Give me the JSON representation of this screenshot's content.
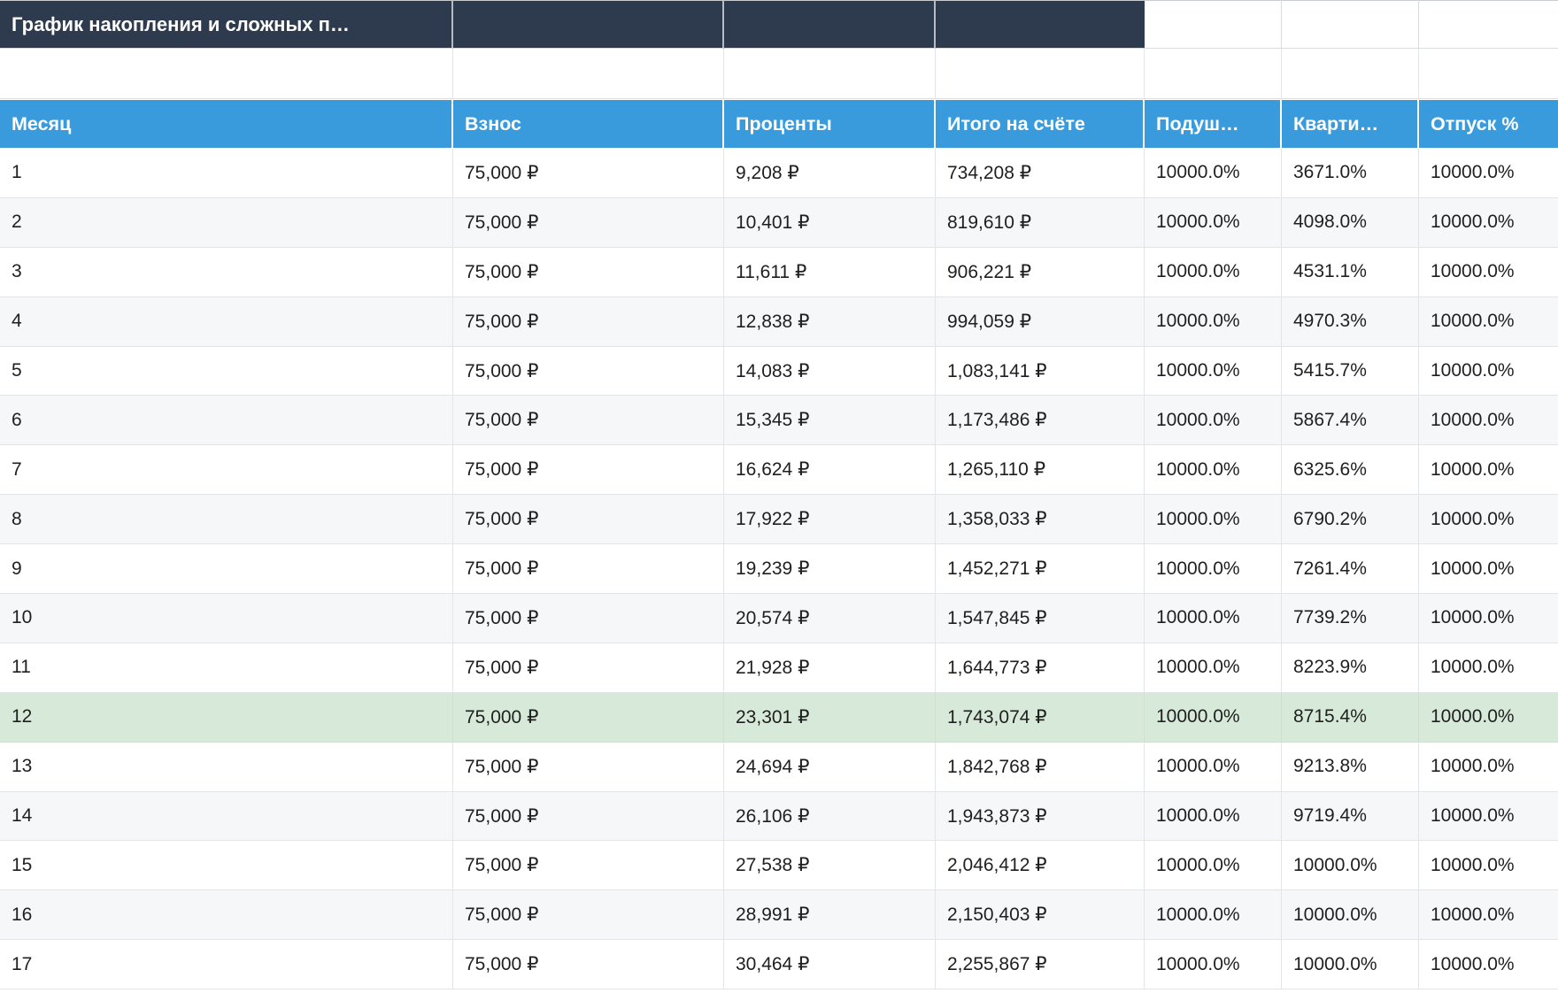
{
  "title": "График накопления и сложных п…",
  "columns": [
    {
      "key": "month",
      "label": "Месяц"
    },
    {
      "key": "contribution",
      "label": "Взнос"
    },
    {
      "key": "interest",
      "label": "Проценты"
    },
    {
      "key": "total",
      "label": "Итого на счёте"
    },
    {
      "key": "cushion-pct",
      "label": "Подуш…"
    },
    {
      "key": "apartment-pct",
      "label": "Кварти…"
    },
    {
      "key": "vacation-pct",
      "label": "Отпуск %"
    }
  ],
  "highlighted_month": "12",
  "rows": [
    {
      "highlight": false,
      "cells": [
        "1",
        "75,000 ₽",
        "9,208 ₽",
        "734,208 ₽",
        "10000.0%",
        "3671.0%",
        "10000.0%"
      ]
    },
    {
      "highlight": false,
      "cells": [
        "2",
        "75,000 ₽",
        "10,401 ₽",
        "819,610 ₽",
        "10000.0%",
        "4098.0%",
        "10000.0%"
      ]
    },
    {
      "highlight": false,
      "cells": [
        "3",
        "75,000 ₽",
        "11,611 ₽",
        "906,221 ₽",
        "10000.0%",
        "4531.1%",
        "10000.0%"
      ]
    },
    {
      "highlight": false,
      "cells": [
        "4",
        "75,000 ₽",
        "12,838 ₽",
        "994,059 ₽",
        "10000.0%",
        "4970.3%",
        "10000.0%"
      ]
    },
    {
      "highlight": false,
      "cells": [
        "5",
        "75,000 ₽",
        "14,083 ₽",
        "1,083,141 ₽",
        "10000.0%",
        "5415.7%",
        "10000.0%"
      ]
    },
    {
      "highlight": false,
      "cells": [
        "6",
        "75,000 ₽",
        "15,345 ₽",
        "1,173,486 ₽",
        "10000.0%",
        "5867.4%",
        "10000.0%"
      ]
    },
    {
      "highlight": false,
      "cells": [
        "7",
        "75,000 ₽",
        "16,624 ₽",
        "1,265,110 ₽",
        "10000.0%",
        "6325.6%",
        "10000.0%"
      ]
    },
    {
      "highlight": false,
      "cells": [
        "8",
        "75,000 ₽",
        "17,922 ₽",
        "1,358,033 ₽",
        "10000.0%",
        "6790.2%",
        "10000.0%"
      ]
    },
    {
      "highlight": false,
      "cells": [
        "9",
        "75,000 ₽",
        "19,239 ₽",
        "1,452,271 ₽",
        "10000.0%",
        "7261.4%",
        "10000.0%"
      ]
    },
    {
      "highlight": false,
      "cells": [
        "10",
        "75,000 ₽",
        "20,574 ₽",
        "1,547,845 ₽",
        "10000.0%",
        "7739.2%",
        "10000.0%"
      ]
    },
    {
      "highlight": false,
      "cells": [
        "11",
        "75,000 ₽",
        "21,928 ₽",
        "1,644,773 ₽",
        "10000.0%",
        "8223.9%",
        "10000.0%"
      ]
    },
    {
      "highlight": true,
      "cells": [
        "12",
        "75,000 ₽",
        "23,301 ₽",
        "1,743,074 ₽",
        "10000.0%",
        "8715.4%",
        "10000.0%"
      ]
    },
    {
      "highlight": false,
      "cells": [
        "13",
        "75,000 ₽",
        "24,694 ₽",
        "1,842,768 ₽",
        "10000.0%",
        "9213.8%",
        "10000.0%"
      ]
    },
    {
      "highlight": false,
      "cells": [
        "14",
        "75,000 ₽",
        "26,106 ₽",
        "1,943,873 ₽",
        "10000.0%",
        "9719.4%",
        "10000.0%"
      ]
    },
    {
      "highlight": false,
      "cells": [
        "15",
        "75,000 ₽",
        "27,538 ₽",
        "2,046,412 ₽",
        "10000.0%",
        "10000.0%",
        "10000.0%"
      ]
    },
    {
      "highlight": false,
      "cells": [
        "16",
        "75,000 ₽",
        "28,991 ₽",
        "2,150,403 ₽",
        "10000.0%",
        "10000.0%",
        "10000.0%"
      ]
    },
    {
      "highlight": false,
      "cells": [
        "17",
        "75,000 ₽",
        "30,464 ₽",
        "2,255,867 ₽",
        "10000.0%",
        "10000.0%",
        "10000.0%"
      ]
    }
  ],
  "colors": {
    "title_bar_bg": "#2e3b4e",
    "header_bg": "#3a9bdc",
    "alt_row_bg": "#f5f7f9",
    "highlight_row_bg": "#d7ead9"
  }
}
